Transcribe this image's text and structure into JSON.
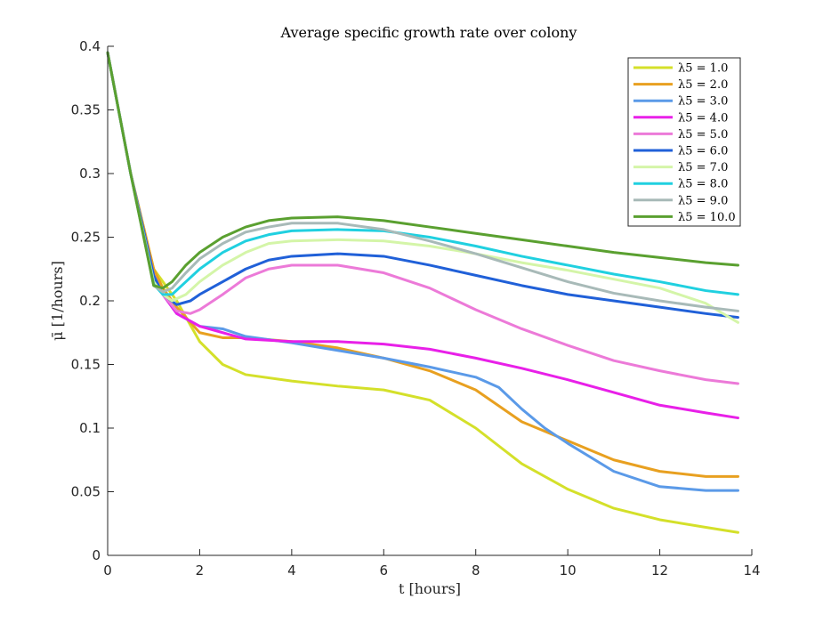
{
  "chart_data": {
    "type": "line",
    "title": "Average specific growth rate over colony",
    "xlabel": "t [hours]",
    "ylabel": "μ̄ [1/hours]",
    "xlim": [
      0,
      14
    ],
    "ylim": [
      0,
      0.4
    ],
    "xticks": [
      "0",
      "2",
      "4",
      "6",
      "8",
      "10",
      "12",
      "14"
    ],
    "yticks": [
      "0",
      "0.05",
      "0.1",
      "0.15",
      "0.2",
      "0.25",
      "0.3",
      "0.35",
      "0.4"
    ],
    "grid": false,
    "legend_position": "top-right",
    "series": [
      {
        "name": "λ5 = 1.0",
        "color": "#d4e02a",
        "x": [
          0,
          0.5,
          1.0,
          1.2,
          1.5,
          2.0,
          2.5,
          3.0,
          4.0,
          5.0,
          6.0,
          7.0,
          8.0,
          9.0,
          10.0,
          11.0,
          12.0,
          13.0,
          13.7
        ],
        "y": [
          0.395,
          0.3,
          0.225,
          0.215,
          0.2,
          0.168,
          0.15,
          0.142,
          0.137,
          0.133,
          0.13,
          0.122,
          0.1,
          0.072,
          0.052,
          0.037,
          0.028,
          0.022,
          0.018
        ]
      },
      {
        "name": "λ5 = 2.0",
        "color": "#e8a020",
        "x": [
          0,
          0.5,
          1.0,
          1.2,
          1.5,
          2.0,
          2.5,
          3.0,
          4.0,
          5.0,
          6.0,
          7.0,
          8.0,
          9.0,
          10.0,
          11.0,
          12.0,
          13.0,
          13.7
        ],
        "y": [
          0.395,
          0.3,
          0.225,
          0.21,
          0.195,
          0.175,
          0.171,
          0.171,
          0.168,
          0.163,
          0.155,
          0.145,
          0.13,
          0.105,
          0.09,
          0.075,
          0.066,
          0.062,
          0.062
        ]
      },
      {
        "name": "λ5 = 3.0",
        "color": "#5b9ae8",
        "x": [
          0,
          0.5,
          1.0,
          1.2,
          1.5,
          2.0,
          2.5,
          3.0,
          4.0,
          5.0,
          6.0,
          7.0,
          8.0,
          8.5,
          9.0,
          9.5,
          10.0,
          11.0,
          12.0,
          13.0,
          13.7
        ],
        "y": [
          0.395,
          0.3,
          0.22,
          0.205,
          0.19,
          0.18,
          0.178,
          0.172,
          0.167,
          0.161,
          0.155,
          0.148,
          0.14,
          0.132,
          0.115,
          0.1,
          0.088,
          0.066,
          0.054,
          0.051,
          0.051
        ]
      },
      {
        "name": "λ5 = 4.0",
        "color": "#e820e8",
        "x": [
          0,
          0.5,
          1.0,
          1.2,
          1.5,
          2.0,
          2.5,
          3.0,
          4.0,
          5.0,
          6.0,
          7.0,
          8.0,
          9.0,
          10.0,
          11.0,
          12.0,
          13.0,
          13.7
        ],
        "y": [
          0.395,
          0.3,
          0.22,
          0.205,
          0.19,
          0.18,
          0.175,
          0.17,
          0.168,
          0.168,
          0.166,
          0.162,
          0.155,
          0.147,
          0.138,
          0.128,
          0.118,
          0.112,
          0.108
        ]
      },
      {
        "name": "λ5 = 5.0",
        "color": "#ec7ad8",
        "x": [
          0,
          0.5,
          1.0,
          1.2,
          1.5,
          1.8,
          2.0,
          2.5,
          3.0,
          3.5,
          4.0,
          5.0,
          6.0,
          7.0,
          8.0,
          9.0,
          10.0,
          11.0,
          12.0,
          13.0,
          13.7
        ],
        "y": [
          0.395,
          0.3,
          0.218,
          0.205,
          0.192,
          0.19,
          0.193,
          0.205,
          0.218,
          0.225,
          0.228,
          0.228,
          0.222,
          0.21,
          0.193,
          0.178,
          0.165,
          0.153,
          0.145,
          0.138,
          0.135
        ]
      },
      {
        "name": "λ5 = 6.0",
        "color": "#2060d8",
        "x": [
          0,
          0.5,
          1.0,
          1.2,
          1.5,
          1.8,
          2.0,
          2.5,
          3.0,
          3.5,
          4.0,
          5.0,
          6.0,
          7.0,
          8.0,
          9.0,
          10.0,
          11.0,
          12.0,
          13.0,
          13.7
        ],
        "y": [
          0.395,
          0.3,
          0.22,
          0.205,
          0.197,
          0.2,
          0.205,
          0.215,
          0.225,
          0.232,
          0.235,
          0.237,
          0.235,
          0.228,
          0.22,
          0.212,
          0.205,
          0.2,
          0.195,
          0.19,
          0.187
        ]
      },
      {
        "name": "λ5 = 7.0",
        "color": "#d4f5a8",
        "x": [
          0,
          0.5,
          1.0,
          1.2,
          1.4,
          1.7,
          2.0,
          2.5,
          3.0,
          3.5,
          4.0,
          5.0,
          6.0,
          7.0,
          8.0,
          9.0,
          10.0,
          11.0,
          12.0,
          13.0,
          13.7
        ],
        "y": [
          0.395,
          0.3,
          0.215,
          0.205,
          0.2,
          0.205,
          0.215,
          0.228,
          0.238,
          0.245,
          0.247,
          0.248,
          0.247,
          0.243,
          0.237,
          0.23,
          0.224,
          0.217,
          0.21,
          0.198,
          0.183
        ]
      },
      {
        "name": "λ5 = 8.0",
        "color": "#20d0e0",
        "x": [
          0,
          0.5,
          1.0,
          1.2,
          1.4,
          1.7,
          2.0,
          2.5,
          3.0,
          3.5,
          4.0,
          5.0,
          6.0,
          7.0,
          8.0,
          9.0,
          10.0,
          11.0,
          12.0,
          13.0,
          13.7
        ],
        "y": [
          0.395,
          0.3,
          0.213,
          0.205,
          0.205,
          0.215,
          0.225,
          0.238,
          0.247,
          0.252,
          0.255,
          0.256,
          0.255,
          0.25,
          0.243,
          0.235,
          0.228,
          0.221,
          0.215,
          0.208,
          0.205
        ]
      },
      {
        "name": "λ5 = 9.0",
        "color": "#a8bab8",
        "x": [
          0,
          0.5,
          1.0,
          1.2,
          1.4,
          1.7,
          2.0,
          2.5,
          3.0,
          3.5,
          4.0,
          5.0,
          6.0,
          7.0,
          8.0,
          9.0,
          10.0,
          11.0,
          12.0,
          13.0,
          13.7
        ],
        "y": [
          0.395,
          0.3,
          0.212,
          0.207,
          0.21,
          0.222,
          0.233,
          0.245,
          0.254,
          0.258,
          0.261,
          0.261,
          0.256,
          0.247,
          0.237,
          0.226,
          0.215,
          0.206,
          0.2,
          0.195,
          0.192
        ]
      },
      {
        "name": "λ5 = 10.0",
        "color": "#5aa030",
        "x": [
          0,
          0.5,
          1.0,
          1.2,
          1.4,
          1.7,
          2.0,
          2.5,
          3.0,
          3.5,
          4.0,
          5.0,
          6.0,
          7.0,
          8.0,
          9.0,
          10.0,
          11.0,
          12.0,
          13.0,
          13.7
        ],
        "y": [
          0.395,
          0.3,
          0.212,
          0.21,
          0.215,
          0.228,
          0.238,
          0.25,
          0.258,
          0.263,
          0.265,
          0.266,
          0.263,
          0.258,
          0.253,
          0.248,
          0.243,
          0.238,
          0.234,
          0.23,
          0.228
        ]
      }
    ]
  }
}
